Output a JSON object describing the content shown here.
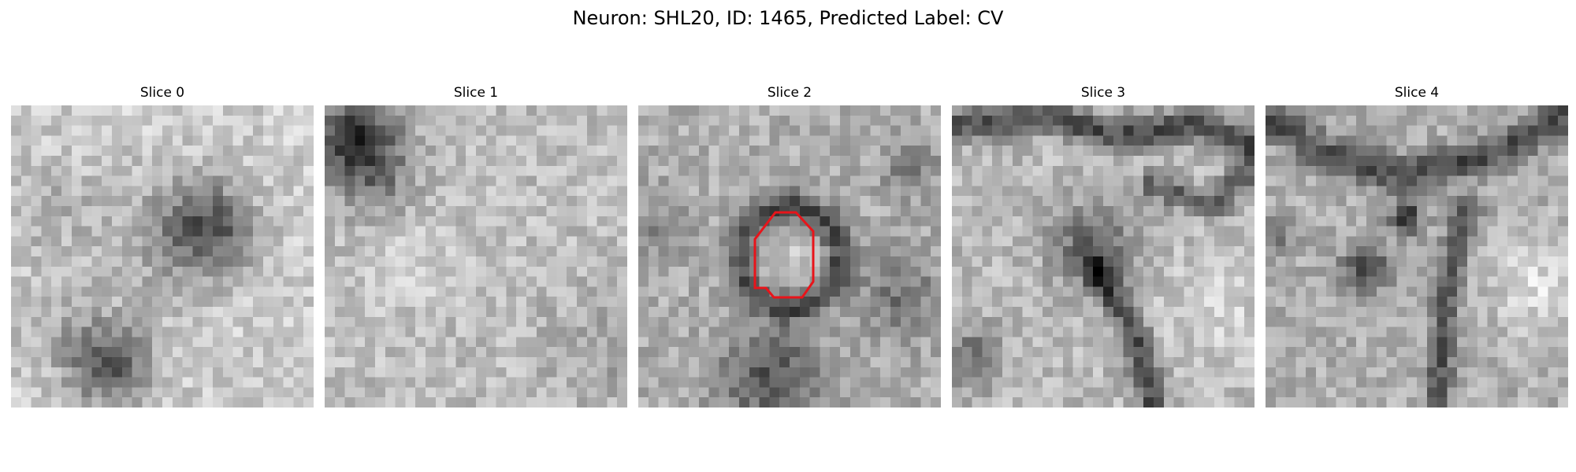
{
  "figure": {
    "title": "Neuron: SHL20, ID: 1465, Predicted Label: CV"
  },
  "panels": [
    {
      "title": "Slice 0",
      "highlight": false
    },
    {
      "title": "Slice 1",
      "highlight": false
    },
    {
      "title": "Slice 2",
      "highlight": true
    },
    {
      "title": "Slice 3",
      "highlight": false
    },
    {
      "title": "Slice 4",
      "highlight": false
    }
  ],
  "colors": {
    "contour": "#e8141a",
    "background": "#ffffff"
  }
}
